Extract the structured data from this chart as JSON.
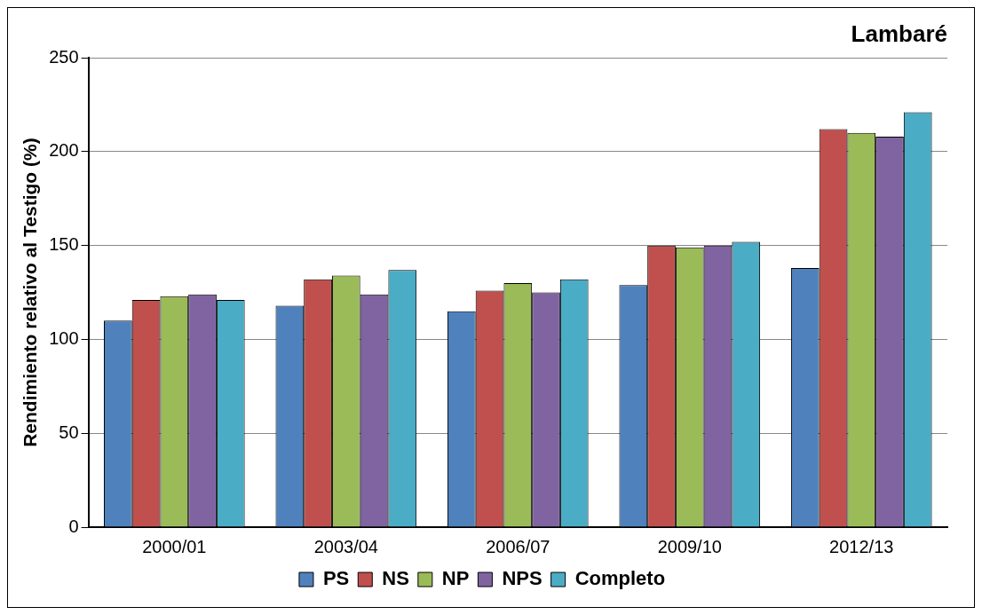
{
  "chart_data": {
    "type": "bar",
    "title": "Lambaré",
    "ylabel": "Rendimiento relativo al Testigo (%)",
    "categories": [
      "2000/01",
      "2003/04",
      "2006/07",
      "2009/10",
      "2012/13"
    ],
    "series": [
      {
        "name": "PS",
        "color": "#4f81bd",
        "values": [
          110,
          118,
          115,
          129,
          138
        ]
      },
      {
        "name": "NS",
        "color": "#c0504d",
        "values": [
          121,
          132,
          126,
          150,
          212
        ]
      },
      {
        "name": "NP",
        "color": "#9bbb59",
        "values": [
          123,
          134,
          130,
          149,
          210
        ]
      },
      {
        "name": "NPS",
        "color": "#8064a2",
        "values": [
          124,
          124,
          125,
          150,
          208
        ]
      },
      {
        "name": "Completo",
        "color": "#4bacc6",
        "values": [
          121,
          137,
          132,
          152,
          221
        ]
      }
    ],
    "ylim": [
      0,
      250
    ],
    "yticks": [
      0,
      50,
      100,
      150,
      200,
      250
    ],
    "grid": "y",
    "legend": "bottom"
  }
}
